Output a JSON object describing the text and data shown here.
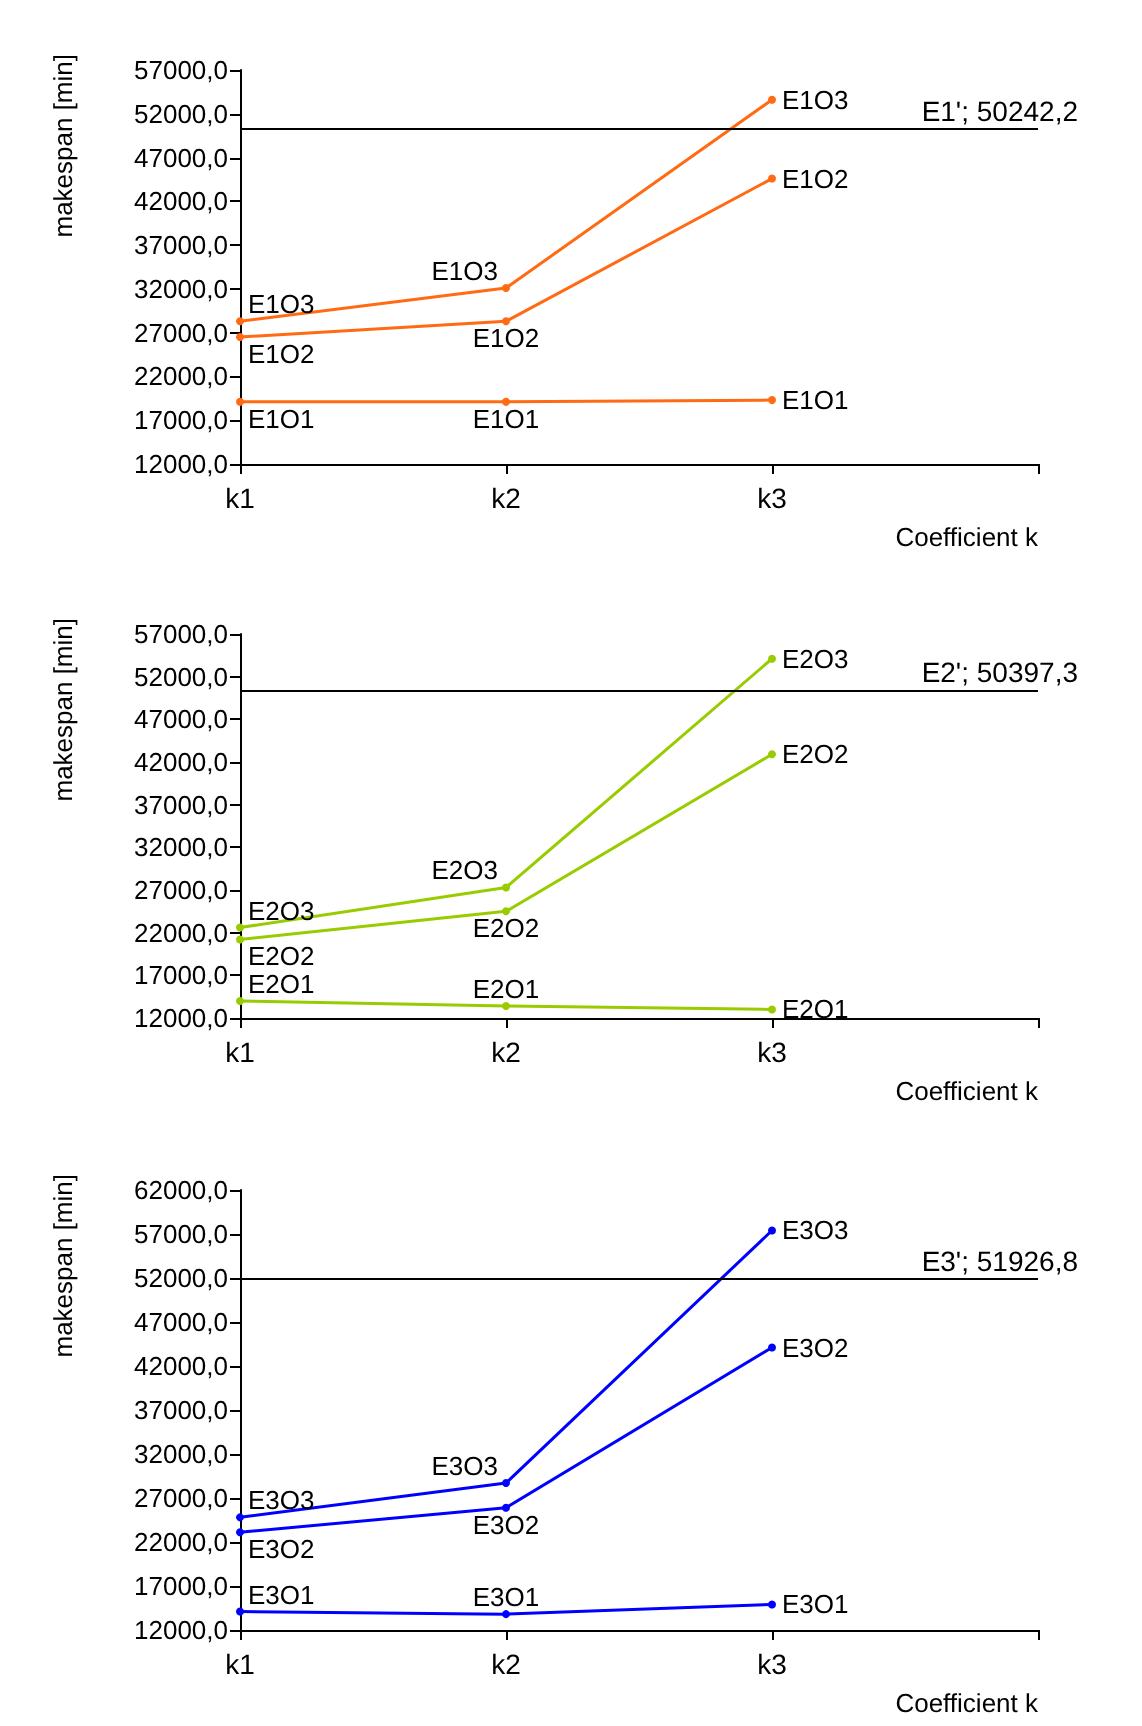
{
  "chart_data": [
    {
      "type": "line",
      "xlabel": "Coefficient k",
      "ylabel": "makespan [min]",
      "categories": [
        "k1",
        "k2",
        "k3",
        null
      ],
      "marker": "circle",
      "grid": false,
      "legend": false,
      "ylim": [
        12000,
        57000
      ],
      "yticks": [
        {
          "value": 12000,
          "label": "12000,0"
        },
        {
          "value": 17000,
          "label": "17000,0"
        },
        {
          "value": 22000,
          "label": "22000,0"
        },
        {
          "value": 27000,
          "label": "27000,0"
        },
        {
          "value": 32000,
          "label": "32000,0"
        },
        {
          "value": 37000,
          "label": "37000,0"
        },
        {
          "value": 42000,
          "label": "42000,0"
        },
        {
          "value": 47000,
          "label": "47000,0"
        },
        {
          "value": 52000,
          "label": "52000,0"
        },
        {
          "value": 57000,
          "label": "57000,0"
        }
      ],
      "ref_lines": [
        {
          "axis": "y",
          "value": 50242.2,
          "label": "E1'; 50242,2",
          "color": "#000000"
        }
      ],
      "series": [
        {
          "name": "E1O1",
          "color": "#ff6a13",
          "values": [
            19100,
            19100,
            19300,
            null
          ]
        },
        {
          "name": "E1O2",
          "color": "#ff6a13",
          "values": [
            26500,
            28300,
            44600,
            null
          ]
        },
        {
          "name": "E1O3",
          "color": "#ff6a13",
          "values": [
            28300,
            32100,
            53600,
            null
          ]
        }
      ]
    },
    {
      "type": "line",
      "xlabel": "Coefficient k",
      "ylabel": "makespan [min]",
      "categories": [
        "k1",
        "k2",
        "k3",
        null
      ],
      "marker": "circle",
      "grid": false,
      "legend": false,
      "ylim": [
        12000,
        57000
      ],
      "yticks": [
        {
          "value": 12000,
          "label": "12000,0"
        },
        {
          "value": 17000,
          "label": "17000,0"
        },
        {
          "value": 22000,
          "label": "22000,0"
        },
        {
          "value": 27000,
          "label": "27000,0"
        },
        {
          "value": 32000,
          "label": "32000,0"
        },
        {
          "value": 37000,
          "label": "37000,0"
        },
        {
          "value": 42000,
          "label": "42000,0"
        },
        {
          "value": 47000,
          "label": "47000,0"
        },
        {
          "value": 52000,
          "label": "52000,0"
        },
        {
          "value": 57000,
          "label": "57000,0"
        }
      ],
      "ref_lines": [
        {
          "axis": "y",
          "value": 50397.3,
          "label": "E2'; 50397,3",
          "color": "#000000"
        }
      ],
      "series": [
        {
          "name": "E2O1",
          "color": "#99cc00",
          "values": [
            14000,
            13400,
            13000,
            null
          ]
        },
        {
          "name": "E2O2",
          "color": "#99cc00",
          "values": [
            21200,
            24500,
            42900,
            null
          ]
        },
        {
          "name": "E2O3",
          "color": "#99cc00",
          "values": [
            22600,
            27300,
            54100,
            null
          ]
        }
      ]
    },
    {
      "type": "line",
      "xlabel": "Coefficient k",
      "ylabel": "makespan [min]",
      "categories": [
        "k1",
        "k2",
        "k3",
        null
      ],
      "marker": "circle",
      "grid": false,
      "legend": false,
      "ylim": [
        12000,
        62000
      ],
      "yticks": [
        {
          "value": 12000,
          "label": "12000,0"
        },
        {
          "value": 17000,
          "label": "17000,0"
        },
        {
          "value": 22000,
          "label": "22000,0"
        },
        {
          "value": 27000,
          "label": "27000,0"
        },
        {
          "value": 32000,
          "label": "32000,0"
        },
        {
          "value": 37000,
          "label": "37000,0"
        },
        {
          "value": 42000,
          "label": "42000,0"
        },
        {
          "value": 47000,
          "label": "47000,0"
        },
        {
          "value": 52000,
          "label": "52000,0"
        },
        {
          "value": 57000,
          "label": "57000,0"
        },
        {
          "value": 62000,
          "label": "62000,0"
        }
      ],
      "ref_lines": [
        {
          "axis": "y",
          "value": 51926.8,
          "label": "E3'; 51926,8",
          "color": "#000000"
        }
      ],
      "series": [
        {
          "name": "E3O1",
          "color": "#0000ff",
          "values": [
            14100,
            13800,
            14900,
            null
          ]
        },
        {
          "name": "E3O2",
          "color": "#0000ff",
          "values": [
            23100,
            25900,
            44100,
            null
          ]
        },
        {
          "name": "E3O3",
          "color": "#0000ff",
          "values": [
            24800,
            28700,
            57400,
            null
          ]
        }
      ]
    }
  ]
}
